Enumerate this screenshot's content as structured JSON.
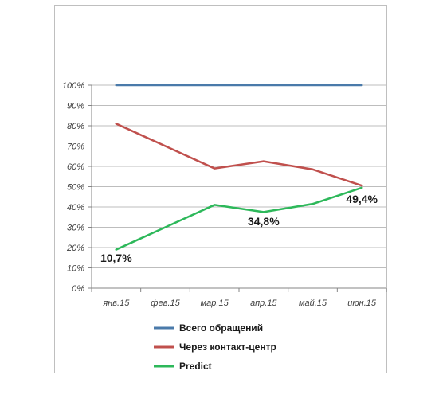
{
  "chart_data": {
    "type": "line",
    "categories": [
      "янв.15",
      "фев.15",
      "мар.15",
      "апр.15",
      "май.15",
      "июн.15"
    ],
    "y_ticks": [
      "0%",
      "10%",
      "20%",
      "30%",
      "40%",
      "50%",
      "60%",
      "70%",
      "80%",
      "90%",
      "100%"
    ],
    "ylim": [
      0,
      100
    ],
    "grid": true,
    "legend_position": "bottom",
    "series": [
      {
        "name": "Всего обращений",
        "color": "#4a7aaa",
        "values": [
          100,
          100,
          100,
          100,
          100,
          100
        ]
      },
      {
        "name": "Через контакт-центр",
        "color": "#c0504d",
        "values": [
          81,
          70,
          59,
          62.5,
          58.5,
          50.5
        ]
      },
      {
        "name": "Predict",
        "color": "#2db85a",
        "values": [
          19,
          30,
          41,
          37.5,
          41.5,
          49.5
        ]
      }
    ],
    "annotations": [
      {
        "text": "10,7%",
        "category": "янв.15",
        "y": 13
      },
      {
        "text": "34,8%",
        "category": "апр.15",
        "y": 31
      },
      {
        "text": "49,4%",
        "category": "июн.15",
        "y": 42
      }
    ]
  }
}
